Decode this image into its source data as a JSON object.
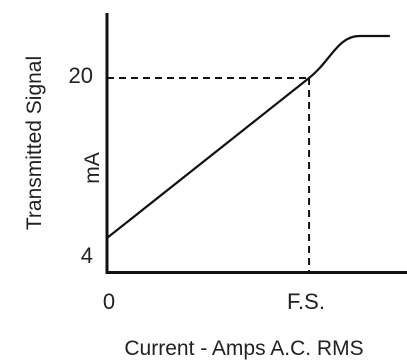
{
  "chart_data": {
    "type": "line",
    "title": "",
    "xlabel": "Current - Amps A.C. RMS",
    "ylabel": "Transmitted Signal",
    "ylabel_unit": "mA",
    "x_tick_labels": [
      "0",
      "F.S."
    ],
    "y_tick_labels": [
      "4",
      "20"
    ],
    "series": [
      {
        "x": [
          0,
          1.0,
          1.25,
          1.4
        ],
        "y": [
          4,
          20,
          24.2,
          24.2
        ]
      }
    ],
    "reference_lines": [
      {
        "style": "dashed",
        "from": [
          0,
          20
        ],
        "to": [
          1.0,
          20
        ]
      },
      {
        "style": "dashed",
        "from": [
          1.0,
          20
        ],
        "to": [
          1.0,
          0.5
        ]
      }
    ],
    "xlim": [
      0,
      1.45
    ],
    "ylim": [
      0.5,
      26.5
    ],
    "grid": false,
    "colors": {
      "line": "#111111",
      "text": "#222222"
    }
  }
}
